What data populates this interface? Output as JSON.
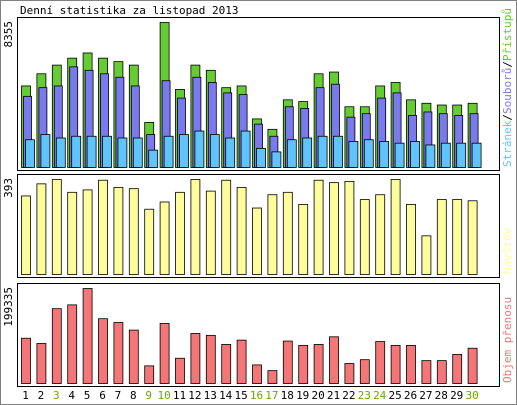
{
  "title": "Denní statistika za listopad 2013",
  "colors": {
    "background": "#ffffff",
    "page_bg": "#ebebeb",
    "border": "#000000",
    "hits": "#66cc33",
    "files": "#7a7aee",
    "pages": "#5fc4fa",
    "visits": "#fdfd9b",
    "kbytes": "#f47676",
    "weekend_label": "#66aa00"
  },
  "chart_data": [
    {
      "type": "bar",
      "panel": "hits-files-pages",
      "ymax_label": "8355",
      "ylim": [
        0,
        8355
      ],
      "legend": {
        "pages": "Stránek",
        "sep1": "/",
        "files": "Souborů",
        "sep2": "/",
        "hits": "Přístupů"
      },
      "categories": [
        "1",
        "2",
        "3",
        "4",
        "5",
        "6",
        "7",
        "8",
        "9",
        "10",
        "11",
        "12",
        "13",
        "14",
        "15",
        "16",
        "17",
        "18",
        "19",
        "20",
        "21",
        "22",
        "23",
        "24",
        "25",
        "26",
        "27",
        "28",
        "29",
        "30"
      ],
      "series": [
        {
          "name": "Přístupů",
          "values": [
            4700,
            5400,
            5900,
            6300,
            6600,
            6300,
            6100,
            5900,
            2600,
            8355,
            4500,
            5900,
            5600,
            4600,
            4700,
            2800,
            2200,
            3900,
            3800,
            5400,
            5500,
            3500,
            3500,
            4700,
            4900,
            3900,
            3700,
            3600,
            3600,
            3700
          ]
        },
        {
          "name": "Souborů",
          "values": [
            4100,
            4600,
            4700,
            5800,
            5600,
            5400,
            5200,
            4700,
            1900,
            5000,
            4000,
            5200,
            4900,
            4300,
            4200,
            2500,
            1800,
            3500,
            3400,
            4600,
            4800,
            2900,
            3100,
            4000,
            4300,
            3000,
            3200,
            3100,
            3000,
            3100
          ]
        },
        {
          "name": "Stránek",
          "values": [
            1600,
            1900,
            1700,
            1800,
            1800,
            1800,
            1700,
            1700,
            1000,
            1800,
            1900,
            2100,
            1900,
            1700,
            2100,
            1100,
            900,
            1600,
            1700,
            1800,
            1800,
            1500,
            1600,
            1500,
            1400,
            1500,
            1300,
            1400,
            1400,
            1400
          ]
        }
      ]
    },
    {
      "type": "bar",
      "panel": "visits",
      "ymax_label": "393",
      "ylim": [
        0,
        393
      ],
      "legend": {
        "visits": "Návštěv"
      },
      "categories": [
        "1",
        "2",
        "3",
        "4",
        "5",
        "6",
        "7",
        "8",
        "9",
        "10",
        "11",
        "12",
        "13",
        "14",
        "15",
        "16",
        "17",
        "18",
        "19",
        "20",
        "21",
        "22",
        "23",
        "24",
        "25",
        "26",
        "27",
        "28",
        "29",
        "30"
      ],
      "series": [
        {
          "name": "Návštěv",
          "values": [
            325,
            375,
            393,
            340,
            350,
            390,
            360,
            355,
            270,
            300,
            340,
            393,
            345,
            390,
            360,
            275,
            330,
            340,
            290,
            390,
            380,
            385,
            310,
            330,
            393,
            290,
            160,
            310,
            310,
            305
          ]
        }
      ]
    },
    {
      "type": "bar",
      "panel": "kbytes",
      "ymax_label": "199335",
      "ylim": [
        0,
        199335
      ],
      "legend": {
        "kbytes": "Objem přenosu"
      },
      "categories": [
        "1",
        "2",
        "3",
        "4",
        "5",
        "6",
        "7",
        "8",
        "9",
        "10",
        "11",
        "12",
        "13",
        "14",
        "15",
        "16",
        "17",
        "18",
        "19",
        "20",
        "21",
        "22",
        "23",
        "24",
        "25",
        "26",
        "27",
        "28",
        "29",
        "30"
      ],
      "series": [
        {
          "name": "Objem přenosu",
          "values": [
            95000,
            84000,
            157000,
            165000,
            199335,
            136000,
            128000,
            112000,
            37000,
            126000,
            53000,
            105000,
            101000,
            82000,
            91000,
            39000,
            27000,
            89000,
            80000,
            82000,
            98000,
            42000,
            50000,
            88000,
            80000,
            80000,
            48000,
            48000,
            61000,
            74000
          ]
        }
      ],
      "x_labels_weekend": [
        3,
        9,
        10,
        16,
        17,
        23,
        24,
        30
      ]
    }
  ]
}
